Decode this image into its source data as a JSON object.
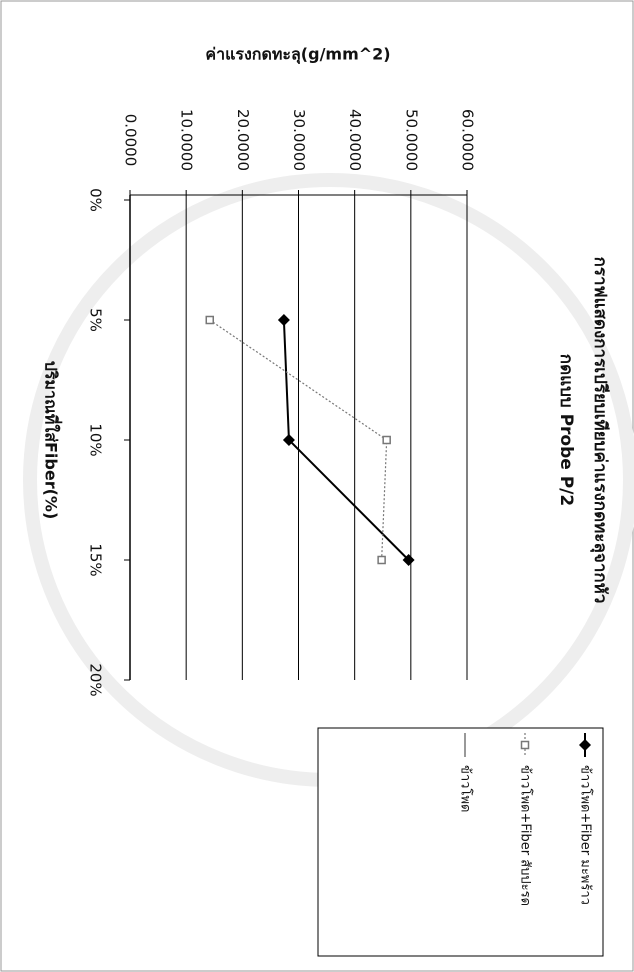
{
  "chart_data": {
    "type": "line",
    "title": "กราฟแสดงการเปรียบเทียบค่าแรงกดทะลุจากหัว",
    "subtitle": "กดแบบ Probe P/2",
    "y_label": "ค่าแรงกดทะลุ(g/mm^2)",
    "x_label": "ปริมาณที่ใส่Fiber(%)",
    "categories": [
      "0%",
      "5%",
      "10%",
      "15%",
      "20%"
    ],
    "series": [
      {
        "name": "ข้าวโพด+Fiber มะพร้าว",
        "color": "#000000",
        "marker": "diamond",
        "dash": "solid",
        "values": [
          null,
          27.4,
          28.3,
          49.6,
          null
        ]
      },
      {
        "name": "ข้าวโพด+Fiber สับปะรด",
        "color": "#777777",
        "marker": "square",
        "dash": "dotted",
        "values": [
          null,
          14.2,
          45.7,
          44.8,
          null
        ]
      },
      {
        "name": "ข้าวโพด",
        "color": "#999999",
        "marker": "none",
        "dash": "solid",
        "values": [
          null,
          null,
          null,
          null,
          null
        ]
      }
    ],
    "ylim": [
      0,
      60
    ],
    "yticks": [
      {
        "value": 0,
        "label": "0.0000"
      },
      {
        "value": 10,
        "label": "10.0000"
      },
      {
        "value": 20,
        "label": "20.0000"
      },
      {
        "value": 30,
        "label": "30.0000"
      },
      {
        "value": 40,
        "label": "40.0000"
      },
      {
        "value": 50,
        "label": "50.0000"
      },
      {
        "value": 60,
        "label": "60.0000"
      }
    ],
    "grid": true,
    "legend": "bottom"
  }
}
